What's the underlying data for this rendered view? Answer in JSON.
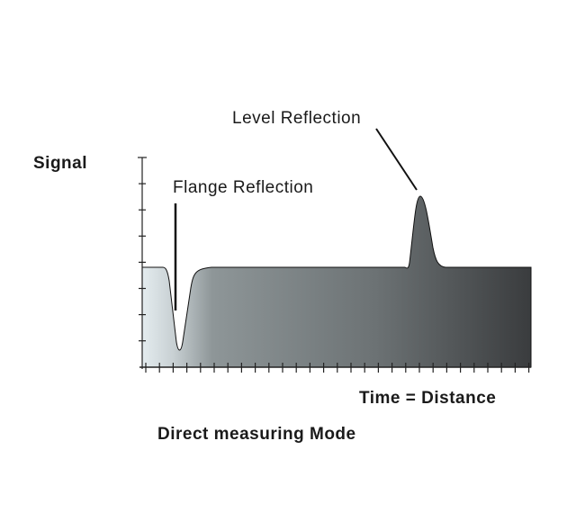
{
  "labels": {
    "y_axis": "Signal",
    "x_axis": "Time = Distance",
    "flange": "Flange Reflection",
    "level": "Level Reflection",
    "caption": "Direct measuring Mode"
  },
  "colors": {
    "fill_light": "#e4ecef",
    "fill_dark": "#3a3c3e",
    "line": "#111111"
  }
}
